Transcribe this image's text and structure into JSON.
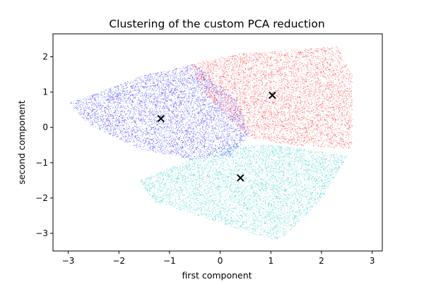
{
  "chart_data": {
    "type": "scatter",
    "title": "Clustering of the custom PCA reduction",
    "xlabel": "first component",
    "ylabel": "second component",
    "xlim": [
      -3.3,
      3.2
    ],
    "ylim": [
      -3.5,
      2.65
    ],
    "xticks": [
      -3,
      -2,
      -1,
      0,
      1,
      2,
      3
    ],
    "yticks": [
      -3,
      -2,
      -1,
      0,
      1,
      2
    ],
    "grid": false,
    "legend": "none",
    "series": [
      {
        "color": "#0000ff",
        "region": {
          "x_range": [
            -3.0,
            0.6
          ],
          "y_range": [
            -1.5,
            1.8
          ],
          "description_points": [
            [
              -3.0,
              0.7
            ],
            [
              -2.4,
              1.0
            ],
            [
              -1.5,
              1.5
            ],
            [
              -0.5,
              1.8
            ],
            [
              0.3,
              0.8
            ],
            [
              0.6,
              -0.2
            ],
            [
              0.2,
              -0.8
            ],
            [
              -0.6,
              -0.9
            ],
            [
              -1.6,
              -0.6
            ],
            [
              -2.6,
              0.1
            ]
          ]
        }
      },
      {
        "color": "#ff0000",
        "region": {
          "x_range": [
            -0.6,
            2.7
          ],
          "y_range": [
            -0.8,
            2.3
          ],
          "description_points": [
            [
              -0.6,
              1.8
            ],
            [
              0.4,
              2.1
            ],
            [
              1.4,
              2.2
            ],
            [
              2.3,
              2.3
            ],
            [
              2.6,
              1.5
            ],
            [
              2.6,
              -0.6
            ],
            [
              1.4,
              -0.5
            ],
            [
              0.6,
              -0.3
            ],
            [
              0.0,
              0.5
            ],
            [
              -0.4,
              1.1
            ]
          ]
        }
      },
      {
        "color": "#00bfbf",
        "region": {
          "x_range": [
            -1.6,
            2.6
          ],
          "y_range": [
            -3.3,
            -0.4
          ],
          "description_points": [
            [
              -1.6,
              -1.5
            ],
            [
              -0.6,
              -0.9
            ],
            [
              0.3,
              -0.5
            ],
            [
              1.2,
              -0.5
            ],
            [
              2.5,
              -0.8
            ],
            [
              2.0,
              -2.0
            ],
            [
              1.4,
              -2.9
            ],
            [
              1.1,
              -3.2
            ],
            [
              0.4,
              -2.9
            ],
            [
              -0.4,
              -2.5
            ],
            [
              -1.3,
              -2.1
            ]
          ]
        }
      }
    ],
    "centroids": [
      {
        "x": -1.17,
        "y": 0.25,
        "marker": "x",
        "color": "#000000"
      },
      {
        "x": 1.03,
        "y": 0.91,
        "marker": "x",
        "color": "#000000"
      },
      {
        "x": 0.4,
        "y": -1.43,
        "marker": "x",
        "color": "#000000"
      }
    ]
  }
}
